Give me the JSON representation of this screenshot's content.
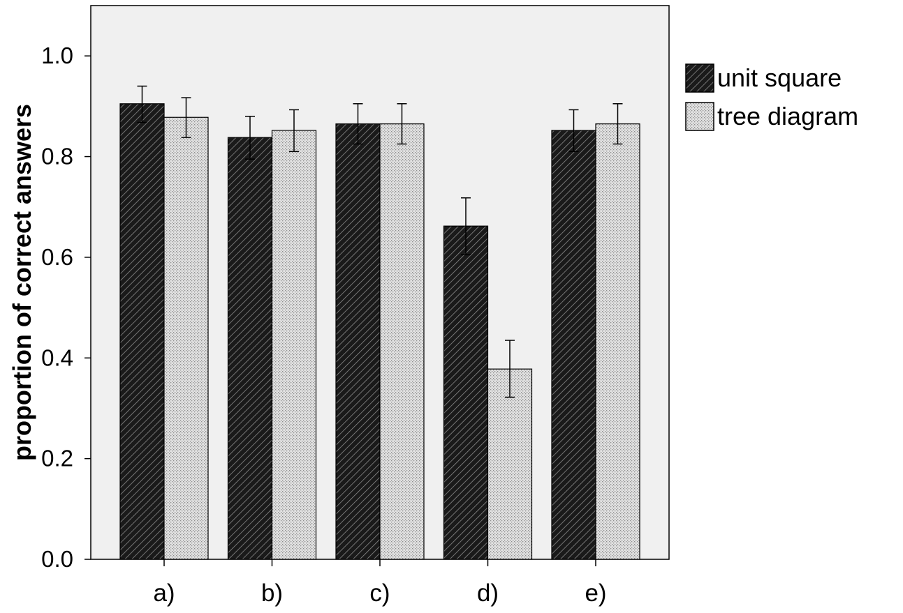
{
  "chart_data": {
    "type": "bar",
    "title": "",
    "xlabel": "",
    "ylabel": "proportion of correct answers",
    "ylim": [
      0,
      1.1
    ],
    "yticks": [
      0.0,
      0.2,
      0.4,
      0.6,
      0.8,
      1.0
    ],
    "ytick_labels": [
      "0.0",
      "0.2",
      "0.4",
      "0.6",
      "0.8",
      "1.0"
    ],
    "categories": [
      "a)",
      "b)",
      "c)",
      "d)",
      "e)"
    ],
    "series": [
      {
        "name": "unit square",
        "pattern": "diagonal-hatch-dark",
        "color": "#1a1a1a",
        "values": [
          0.905,
          0.838,
          0.865,
          0.662,
          0.852
        ],
        "error_low": [
          0.868,
          0.795,
          0.825,
          0.605,
          0.81
        ],
        "error_high": [
          0.94,
          0.88,
          0.905,
          0.718,
          0.893
        ]
      },
      {
        "name": "tree diagram",
        "pattern": "dotted-light",
        "color": "#d8d8d8",
        "values": [
          0.878,
          0.852,
          0.865,
          0.378,
          0.865
        ],
        "error_low": [
          0.838,
          0.81,
          0.825,
          0.322,
          0.825
        ],
        "error_high": [
          0.917,
          0.893,
          0.905,
          0.435,
          0.905
        ]
      }
    ],
    "legend_position": "right",
    "grid": false,
    "plot_background": "#f0f0f0"
  }
}
